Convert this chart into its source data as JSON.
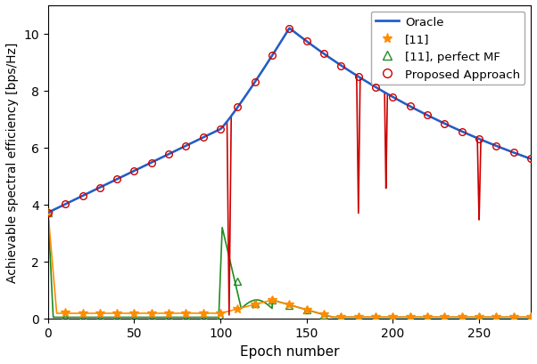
{
  "xlabel": "Epoch number",
  "ylabel": "Achievable spectral efficiency [bps/Hz]",
  "xlim": [
    0,
    280
  ],
  "ylim": [
    0,
    11
  ],
  "oracle_color": "#2060cc",
  "proposed_color": "#cc0000",
  "ref11_color": "#ff8c00",
  "ref11pmf_color": "#228b22",
  "figsize": [
    6.02,
    4.1
  ],
  "dpi": 100
}
